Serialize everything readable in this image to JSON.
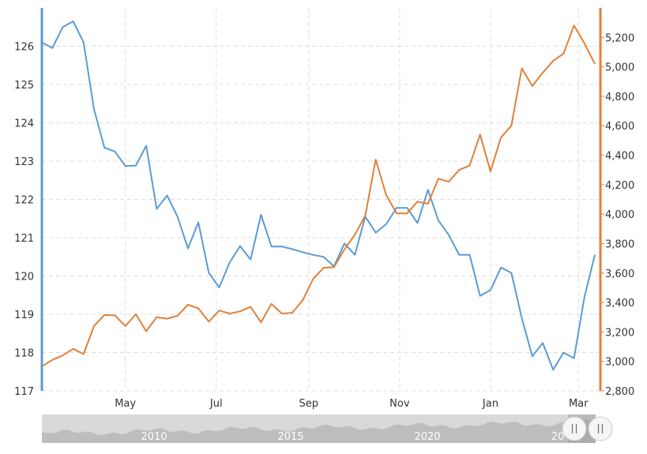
{
  "chart_data": {
    "type": "line",
    "grid": true,
    "x": [
      "2022-03-06",
      "2022-03-13",
      "2022-03-20",
      "2022-03-27",
      "2022-04-03",
      "2022-04-10",
      "2022-04-17",
      "2022-04-24",
      "2022-05-01",
      "2022-05-08",
      "2022-05-15",
      "2022-05-22",
      "2022-05-29",
      "2022-06-05",
      "2022-06-12",
      "2022-06-19",
      "2022-06-26",
      "2022-07-03",
      "2022-07-10",
      "2022-07-17",
      "2022-07-24",
      "2022-07-31",
      "2022-08-07",
      "2022-08-14",
      "2022-08-21",
      "2022-08-28",
      "2022-09-04",
      "2022-09-11",
      "2022-09-18",
      "2022-09-25",
      "2022-10-02",
      "2022-10-09",
      "2022-10-16",
      "2022-10-23",
      "2022-10-30",
      "2022-11-06",
      "2022-11-13",
      "2022-11-20",
      "2022-11-27",
      "2022-12-04",
      "2022-12-11",
      "2022-12-18",
      "2022-12-25",
      "2023-01-01",
      "2023-01-08",
      "2023-01-15",
      "2023-01-22",
      "2023-01-29",
      "2023-02-05",
      "2023-02-12",
      "2023-02-19",
      "2023-02-26",
      "2023-03-05",
      "2023-03-12"
    ],
    "series": [
      {
        "color": "#5b9bd5",
        "axis": "left",
        "values": [
          126.1,
          125.95,
          126.5,
          126.65,
          126.1,
          124.35,
          123.35,
          123.25,
          122.87,
          122.88,
          123.4,
          121.75,
          122.1,
          121.55,
          120.72,
          121.4,
          120.08,
          119.7,
          120.35,
          120.78,
          120.43,
          121.6,
          120.77,
          120.77,
          120.7,
          120.62,
          120.55,
          120.5,
          120.25,
          120.85,
          120.55,
          121.55,
          121.13,
          121.35,
          121.78,
          121.78,
          121.38,
          122.25,
          121.45,
          121.07,
          120.55,
          120.55,
          119.48,
          119.63,
          120.22,
          120.08,
          118.9,
          117.9,
          118.25,
          117.55,
          118.0,
          117.85,
          119.45,
          120.55
        ]
      },
      {
        "color": "#e0803a",
        "axis": "right",
        "values": [
          2965,
          3010,
          3040,
          3085,
          3050,
          3240,
          3315,
          3312,
          3240,
          3320,
          3205,
          3300,
          3290,
          3310,
          3385,
          3360,
          3270,
          3345,
          3325,
          3340,
          3370,
          3265,
          3390,
          3325,
          3330,
          3415,
          3560,
          3635,
          3640,
          3760,
          3860,
          3990,
          4370,
          4130,
          4005,
          4005,
          4085,
          4070,
          4240,
          4220,
          4300,
          4330,
          4540,
          4290,
          4520,
          4600,
          4990,
          4870,
          4960,
          5040,
          5090,
          5280,
          5160,
          5020
        ]
      }
    ],
    "x_tick_labels": [
      "May",
      "Jul",
      "Sep",
      "Nov",
      "Jan",
      "Mar"
    ],
    "x_tick_dates": [
      "2022-05-01",
      "2022-07-01",
      "2022-09-01",
      "2022-11-01",
      "2023-01-01",
      "2023-03-01"
    ],
    "y_left": {
      "ticks": [
        117,
        118,
        119,
        120,
        121,
        122,
        123,
        124,
        125,
        126
      ],
      "range": [
        117,
        127
      ],
      "color": "#5b9bd5"
    },
    "y_right": {
      "ticks": [
        2800,
        3000,
        3200,
        3400,
        3600,
        3800,
        4000,
        4200,
        4400,
        4600,
        4800,
        5000,
        5200
      ],
      "tick_labels": [
        "2,800",
        "3,000",
        "3,200",
        "3,400",
        "3,600",
        "3,800",
        "4,000",
        "4,200",
        "4,400",
        "4,600",
        "4,800",
        "5,000",
        "5,200"
      ],
      "range": [
        2800,
        5400
      ],
      "color": "#e0803a"
    }
  },
  "navigator": {
    "labels": [
      "2010",
      "2015",
      "2020",
      "20"
    ],
    "handle_icon": "double-bar-icon"
  }
}
